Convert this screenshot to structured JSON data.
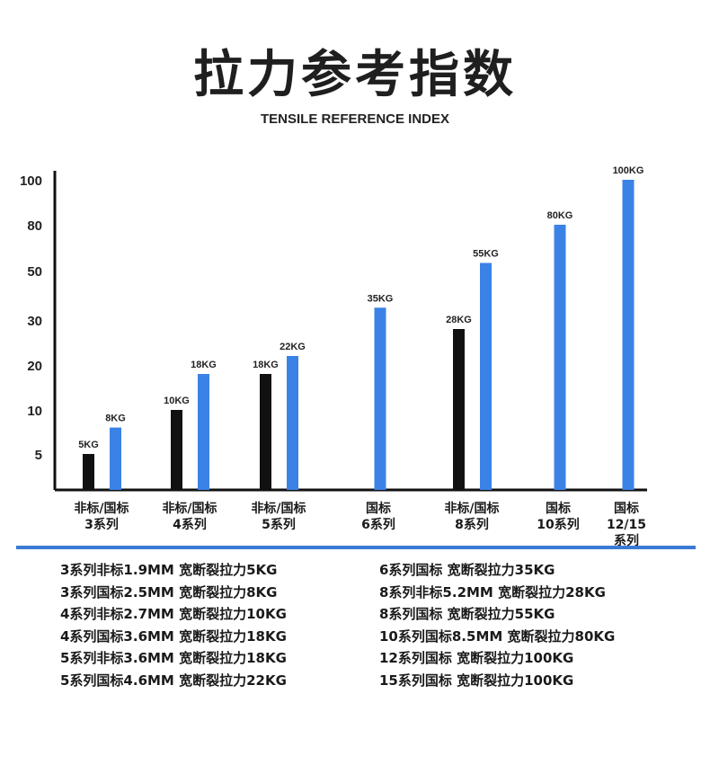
{
  "header": {
    "title": "拉力参考指数",
    "subtitle": "TENSILE REFERENCE INDEX"
  },
  "chart_data": {
    "type": "bar",
    "y_ticks": [
      "100",
      "80",
      "50",
      "30",
      "20",
      "10",
      "5"
    ],
    "groups": [
      {
        "label": [
          "非标/国标",
          "3系列"
        ],
        "bars": [
          {
            "kind": "non-standard",
            "value": 5,
            "label": "5KG"
          },
          {
            "kind": "standard",
            "value": 8,
            "label": "8KG"
          }
        ]
      },
      {
        "label": [
          "非标/国标",
          "4系列"
        ],
        "bars": [
          {
            "kind": "non-standard",
            "value": 10,
            "label": "10KG"
          },
          {
            "kind": "standard",
            "value": 18,
            "label": "18KG"
          }
        ]
      },
      {
        "label": [
          "非标/国标",
          "5系列"
        ],
        "bars": [
          {
            "kind": "non-standard",
            "value": 18,
            "label": "18KG"
          },
          {
            "kind": "standard",
            "value": 22,
            "label": "22KG"
          }
        ]
      },
      {
        "label": [
          "国标",
          "6系列"
        ],
        "bars": [
          {
            "kind": "standard",
            "value": 35,
            "label": "35KG"
          }
        ]
      },
      {
        "label": [
          "非标/国标",
          "8系列"
        ],
        "bars": [
          {
            "kind": "non-standard",
            "value": 28,
            "label": "28KG"
          },
          {
            "kind": "standard",
            "value": 55,
            "label": "55KG"
          }
        ]
      },
      {
        "label": [
          "国标",
          "10系列"
        ],
        "bars": [
          {
            "kind": "standard",
            "value": 80,
            "label": "80KG"
          }
        ]
      },
      {
        "label": [
          "国标",
          "12/15",
          "系列"
        ],
        "bars": [
          {
            "kind": "standard",
            "value": 100,
            "label": "100KG"
          }
        ]
      }
    ],
    "colors": {
      "non-standard": "#111111",
      "standard": "#3b82e6"
    }
  },
  "specs": {
    "left": [
      "3系列非标1.9MM 宽断裂拉力5KG",
      "3系列国标2.5MM 宽断裂拉力8KG",
      "4系列非标2.7MM 宽断裂拉力10KG",
      "4系列国标3.6MM 宽断裂拉力18KG",
      "5系列非标3.6MM 宽断裂拉力18KG",
      "5系列国标4.6MM 宽断裂拉力22KG"
    ],
    "right": [
      "6系列国标 宽断裂拉力35KG",
      "8系列非标5.2MM 宽断裂拉力28KG",
      "8系列国标 宽断裂拉力55KG",
      "10系列国标8.5MM 宽断裂拉力80KG",
      "12系列国标 宽断裂拉力100KG",
      "15系列国标 宽断裂拉力100KG"
    ]
  }
}
